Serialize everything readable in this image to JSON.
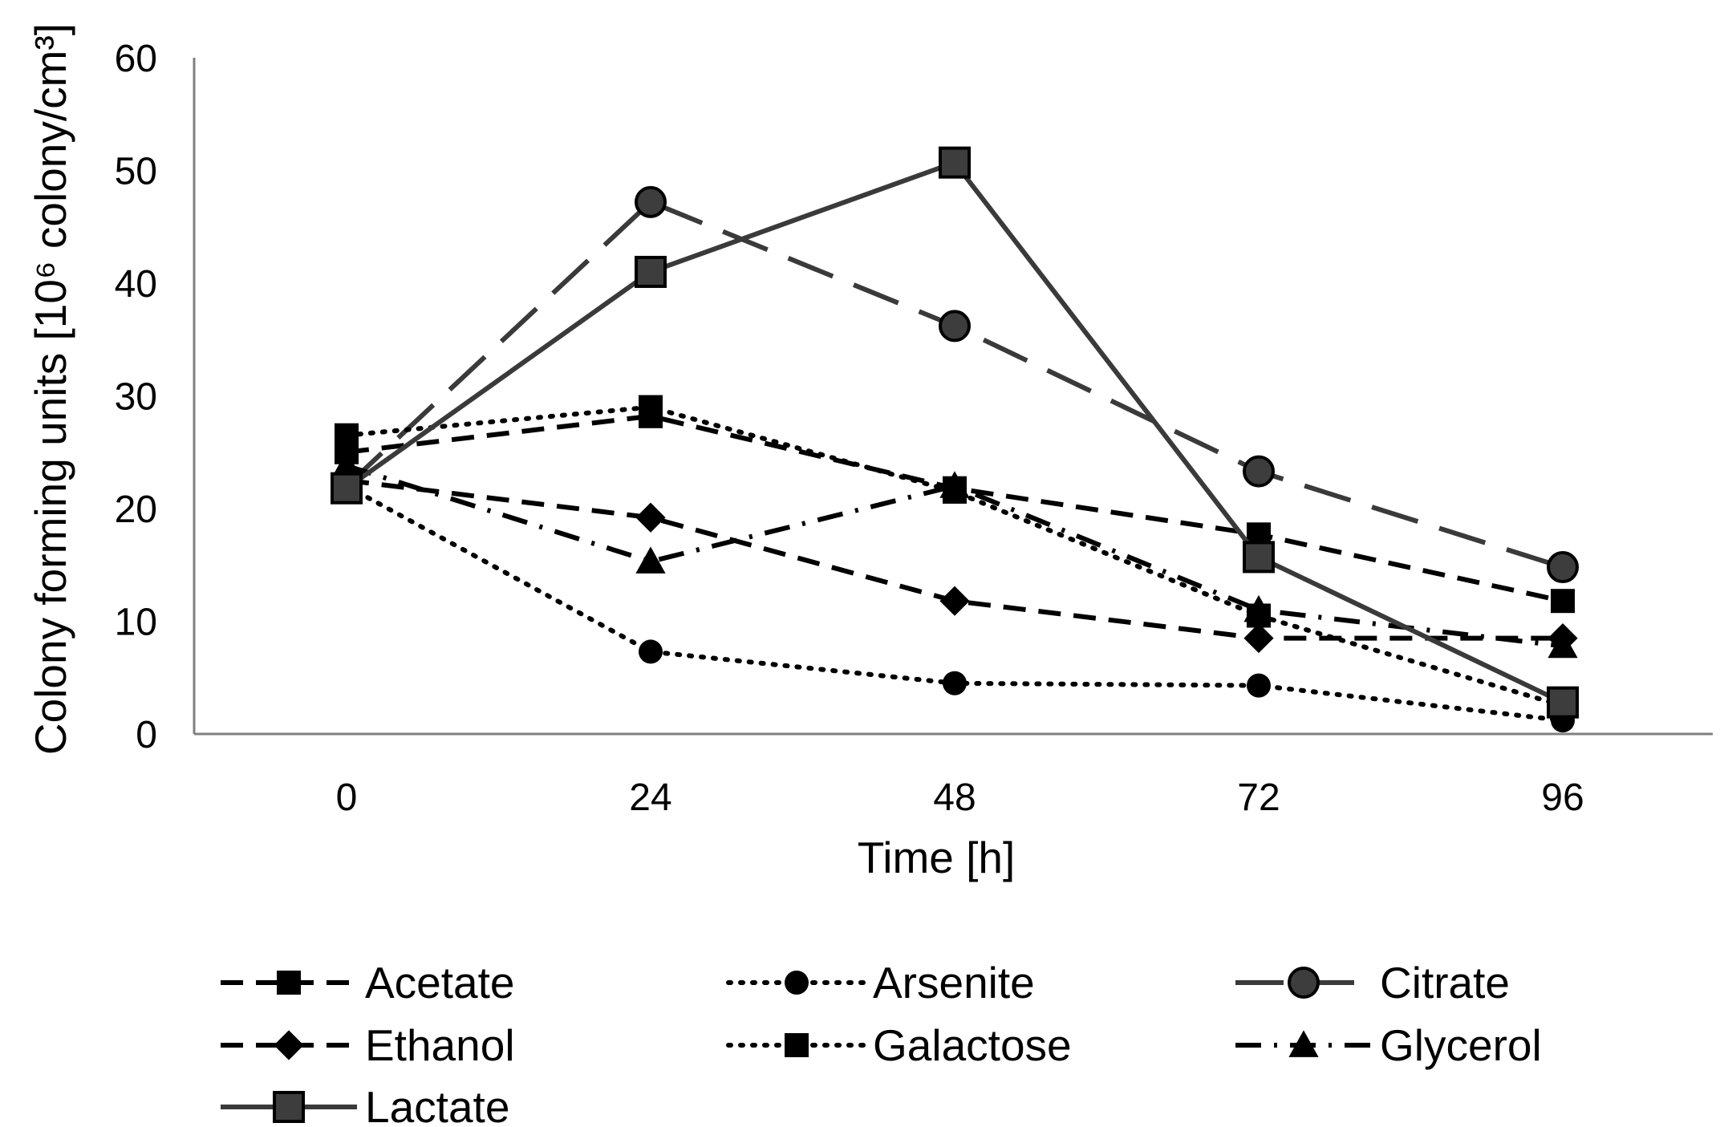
{
  "chart_data": {
    "type": "line",
    "xlabel": "Time [h]",
    "ylabel": "Colony forming units  [10⁶ colony/cm³]",
    "categories": [
      "0",
      "24",
      "48",
      "72",
      "96"
    ],
    "x": [
      0,
      24,
      48,
      72,
      96
    ],
    "ylim": [
      0,
      60
    ],
    "yticks": [
      0,
      10,
      20,
      30,
      40,
      50,
      60
    ],
    "grid": false,
    "legend_placement": "bottom",
    "series": [
      {
        "name": "Acetate",
        "values": [
          25.0,
          28.2,
          21.8,
          17.7,
          11.8
        ],
        "line": "dashed",
        "marker": "square-filled",
        "color": "#000000"
      },
      {
        "name": "Arsenite",
        "values": [
          22.0,
          7.3,
          4.5,
          4.3,
          1.2
        ],
        "line": "dotted",
        "marker": "circle-filled",
        "color": "#000000"
      },
      {
        "name": "Citrate",
        "values": [
          22.0,
          47.2,
          36.2,
          23.3,
          14.8
        ],
        "line": "longdash",
        "marker": "circle-gray",
        "color": "#3a3a3a"
      },
      {
        "name": "Ethanol",
        "values": [
          22.5,
          19.2,
          11.8,
          8.5,
          8.5
        ],
        "line": "dashed",
        "marker": "diamond-filled",
        "color": "#000000"
      },
      {
        "name": "Galactose",
        "values": [
          26.5,
          29.0,
          21.5,
          10.5,
          2.5
        ],
        "line": "dotted",
        "marker": "square-filled",
        "color": "#000000"
      },
      {
        "name": "Glycerol",
        "values": [
          23.8,
          15.3,
          22.0,
          11.0,
          7.8
        ],
        "line": "dashdot",
        "marker": "triangle-filled",
        "color": "#000000"
      },
      {
        "name": "Lactate",
        "values": [
          21.8,
          41.0,
          50.7,
          15.7,
          2.8
        ],
        "line": "solid",
        "marker": "square-gray",
        "color": "#3a3a3a"
      }
    ]
  }
}
